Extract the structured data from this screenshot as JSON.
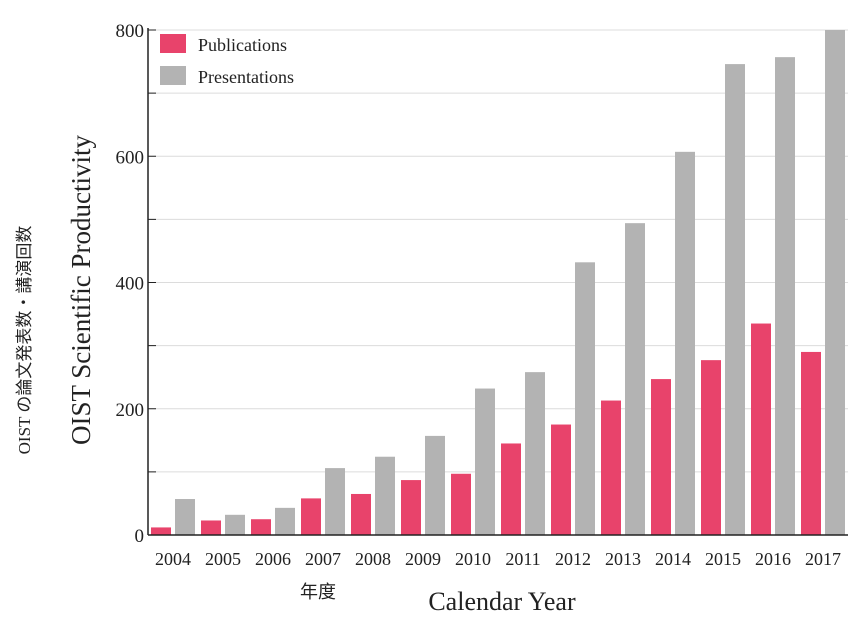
{
  "chart_data": {
    "type": "bar",
    "categories": [
      "2004",
      "2005",
      "2006",
      "2007",
      "2008",
      "2009",
      "2010",
      "2011",
      "2012",
      "2013",
      "2014",
      "2015",
      "2016",
      "2017"
    ],
    "series": [
      {
        "name": "Publications",
        "color": "#e8436b",
        "values": [
          12,
          23,
          25,
          58,
          65,
          87,
          97,
          145,
          175,
          213,
          247,
          277,
          335,
          290
        ]
      },
      {
        "name": "Presentations",
        "color": "#b3b3b3",
        "values": [
          57,
          32,
          43,
          106,
          124,
          157,
          232,
          258,
          432,
          494,
          607,
          746,
          757,
          800
        ]
      }
    ],
    "ylabel": "OIST Scientific Productivity",
    "ylabel_jp": "OIST の論文発表数・講演回数",
    "xlabel": "Calendar Year",
    "xlabel_jp": "年度",
    "ylim": [
      0,
      800
    ],
    "yticks": [
      0,
      200,
      400,
      600,
      800
    ],
    "grid": true,
    "legend_position": "top-left"
  }
}
